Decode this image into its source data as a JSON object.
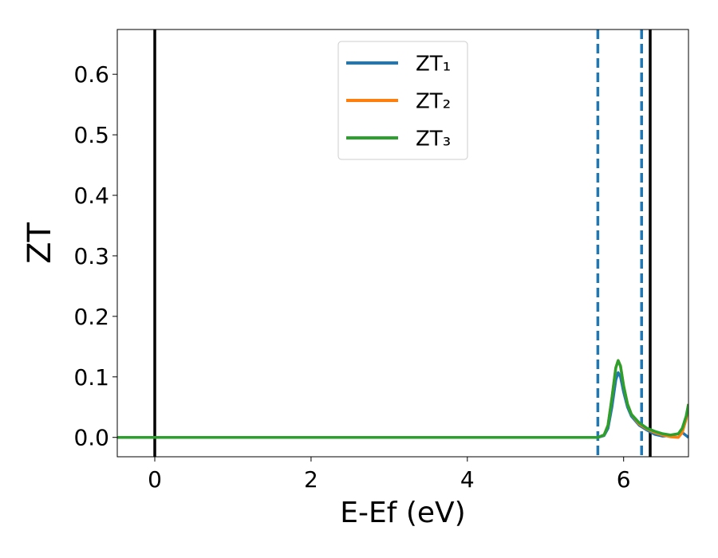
{
  "chart_data": {
    "type": "line",
    "xlabel": "E-Ef (eV)",
    "ylabel": "ZT",
    "x": [
      -0.48,
      5.6,
      5.67,
      5.75,
      5.8,
      5.85,
      5.9,
      5.93,
      5.96,
      6.0,
      6.05,
      6.1,
      6.2,
      6.3,
      6.4,
      6.5,
      6.6,
      6.7,
      6.75,
      6.8,
      6.83
    ],
    "series": [
      {
        "name": "ZT₁",
        "color": "#1f77b4",
        "values": [
          0,
          0,
          0,
          0.003,
          0.015,
          0.05,
          0.095,
          0.107,
          0.1,
          0.075,
          0.05,
          0.035,
          0.02,
          0.012,
          0.005,
          0.002,
          0.003,
          0.006,
          0.008,
          0.003,
          0
        ]
      },
      {
        "name": "ZT₂",
        "color": "#ff7f0e",
        "values": [
          0,
          0,
          0,
          0.004,
          0.02,
          0.065,
          0.115,
          0.127,
          0.118,
          0.085,
          0.055,
          0.038,
          0.022,
          0.014,
          0.008,
          0.004,
          0.001,
          0,
          0.008,
          0.03,
          0.055
        ]
      },
      {
        "name": "ZT₃",
        "color": "#2ca02c",
        "values": [
          0,
          0,
          0,
          0.004,
          0.02,
          0.065,
          0.115,
          0.127,
          0.118,
          0.085,
          0.055,
          0.038,
          0.024,
          0.015,
          0.01,
          0.006,
          0.004,
          0.006,
          0.015,
          0.035,
          0.055
        ]
      }
    ],
    "vlines": [
      {
        "x": 0,
        "color": "#000000",
        "dashed": false
      },
      {
        "x": 6.34,
        "color": "#000000",
        "dashed": false
      },
      {
        "x": 5.67,
        "color": "#1f77b4",
        "dashed": true
      },
      {
        "x": 6.23,
        "color": "#1f77b4",
        "dashed": true
      }
    ],
    "xlim": [
      -0.48,
      6.83
    ],
    "ylim": [
      -0.032,
      0.674
    ],
    "xticks": [
      0,
      2,
      4,
      6
    ],
    "yticks": [
      {
        "value": 0,
        "label": "0.0"
      },
      0.1,
      0.2,
      0.3,
      0.4,
      0.5,
      0.6
    ],
    "legend": "upper center",
    "grid": false
  }
}
